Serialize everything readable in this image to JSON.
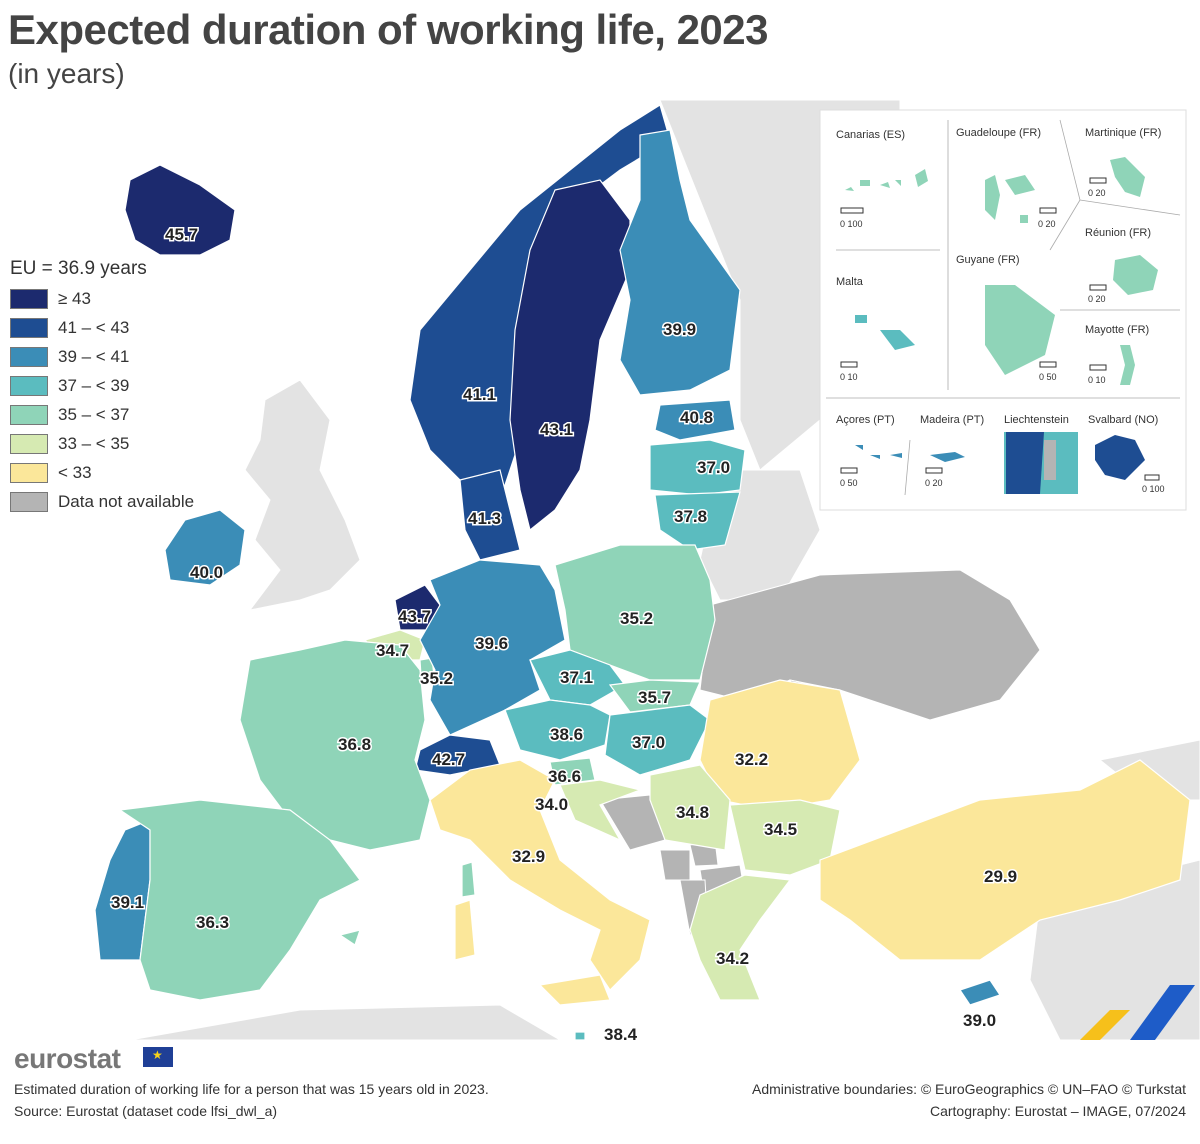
{
  "title": "Expected duration of working life, 2023",
  "subtitle": "(in years)",
  "legend": {
    "title": "EU = 36.9 years",
    "items": [
      {
        "label": "≥ 43",
        "color": "#1c2a6e"
      },
      {
        "label": "41 – < 43",
        "color": "#1e4d92"
      },
      {
        "label": "39 – < 41",
        "color": "#3b8db7"
      },
      {
        "label": "37 – < 39",
        "color": "#5bbcbf"
      },
      {
        "label": "35 – < 37",
        "color": "#8fd4b8"
      },
      {
        "label": "33 – < 35",
        "color": "#d6eab2"
      },
      {
        "label": "< 33",
        "color": "#fbe79a"
      },
      {
        "label": "Data not available",
        "color": "#b4b4b4"
      }
    ]
  },
  "map_values": {
    "iceland": "45.7",
    "norway": "41.1",
    "sweden": "43.1",
    "finland": "39.9",
    "estonia": "40.8",
    "latvia": "37.0",
    "lithuania": "37.8",
    "denmark": "41.3",
    "ireland": "40.0",
    "netherlands": "43.7",
    "belgium": "34.7",
    "luxembourg": "35.2",
    "germany": "39.6",
    "poland": "35.2",
    "czechia": "37.1",
    "slovakia": "35.7",
    "austria": "38.6",
    "hungary": "37.0",
    "switzerland": "42.7",
    "slovenia": "36.6",
    "croatia": "34.0",
    "romania": "32.2",
    "serbia": "34.8",
    "bulgaria": "34.5",
    "france": "36.8",
    "italy": "32.9",
    "portugal": "39.1",
    "spain": "36.3",
    "greece": "34.2",
    "turkey": "29.9",
    "cyprus": "39.0",
    "malta": "38.4"
  },
  "insets": [
    {
      "name": "Canarias (ES)",
      "scale": "0   100"
    },
    {
      "name": "Guadeloupe (FR)",
      "scale": "0   20"
    },
    {
      "name": "Martinique (FR)",
      "scale": "0   20"
    },
    {
      "name": "Réunion (FR)",
      "scale": "0   20"
    },
    {
      "name": "Malta",
      "scale": "0   10"
    },
    {
      "name": "Guyane (FR)",
      "scale": "0  50"
    },
    {
      "name": "Mayotte (FR)",
      "scale": "0  10"
    },
    {
      "name": "Açores (PT)",
      "scale": "0   50"
    },
    {
      "name": "Madeira (PT)",
      "scale": "0  20"
    },
    {
      "name": "Liechtenstein",
      "scale": ""
    },
    {
      "name": "Svalbard (NO)",
      "scale": "0 100"
    }
  ],
  "brand": "eurostat",
  "footer": {
    "note": "Estimated duration of working life for a person that was 15 years old in 2023.",
    "source": "Source: Eurostat (dataset code lfsi_dwl_a)",
    "boundaries": "Administrative boundaries: © EuroGeographics © UN–FAO © Turkstat",
    "cartography": "Cartography: Eurostat – IMAGE, 07/2024"
  }
}
